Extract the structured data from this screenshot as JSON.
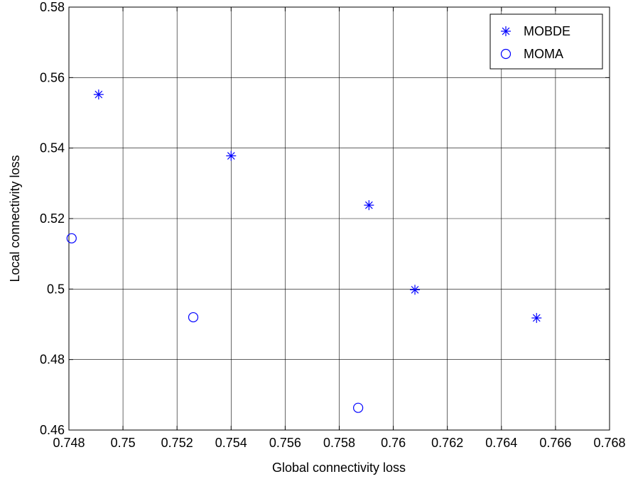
{
  "chart_data": {
    "type": "scatter",
    "title": "",
    "xlabel": "Global connectivity loss",
    "ylabel": "Local connectivity loss",
    "xlim": [
      0.748,
      0.768
    ],
    "ylim": [
      0.46,
      0.58
    ],
    "xticks": [
      0.748,
      0.75,
      0.752,
      0.754,
      0.756,
      0.758,
      0.76,
      0.762,
      0.764,
      0.766,
      0.768
    ],
    "xtick_labels": [
      "0.748",
      "0.75",
      "0.752",
      "0.754",
      "0.756",
      "0.758",
      "0.76",
      "0.762",
      "0.764",
      "0.766",
      "0.768"
    ],
    "yticks": [
      0.46,
      0.48,
      0.5,
      0.52,
      0.54,
      0.56,
      0.58
    ],
    "ytick_labels": [
      "0.46",
      "0.48",
      "0.5",
      "0.52",
      "0.54",
      "0.56",
      "0.58"
    ],
    "grid": true,
    "legend_position": "top-right",
    "series": [
      {
        "name": "MOBDE",
        "marker": "asterisk",
        "color": "#0000ff",
        "points": [
          {
            "x": 0.7491,
            "y": 0.5552
          },
          {
            "x": 0.754,
            "y": 0.5378
          },
          {
            "x": 0.7591,
            "y": 0.5238
          },
          {
            "x": 0.7608,
            "y": 0.4998
          },
          {
            "x": 0.7653,
            "y": 0.4918
          }
        ]
      },
      {
        "name": "MOMA",
        "marker": "circle",
        "color": "#0000ff",
        "points": [
          {
            "x": 0.7481,
            "y": 0.5144
          },
          {
            "x": 0.7526,
            "y": 0.492
          },
          {
            "x": 0.7587,
            "y": 0.4663
          }
        ]
      }
    ]
  }
}
